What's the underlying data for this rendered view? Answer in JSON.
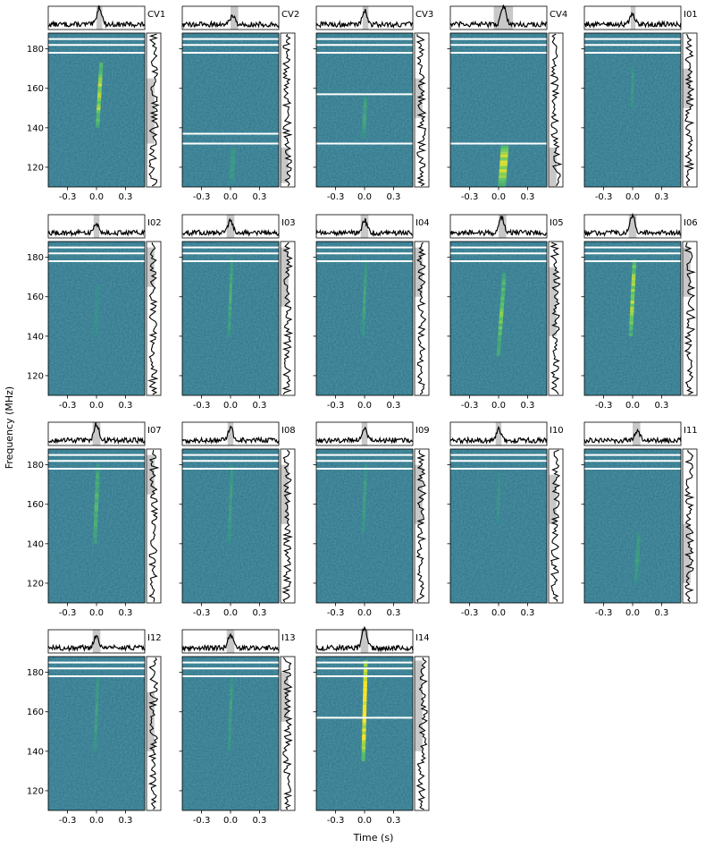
{
  "chart_data": {
    "type": "dynamic-spectrum-grid",
    "xlabel": "Time (s)",
    "ylabel": "Frequency (MHz)",
    "xlim": [
      -0.5,
      0.5
    ],
    "ylim": [
      110,
      188
    ],
    "x_ticks": [
      -0.3,
      0.0,
      0.3
    ],
    "x_tick_labels": [
      "-0.3",
      "0.0",
      "0.3"
    ],
    "y_ticks": [
      120,
      140,
      160,
      180
    ],
    "y_tick_labels": [
      "120",
      "140",
      "160",
      "180"
    ],
    "panels": [
      {
        "name": "CV1",
        "flag_lines": [
          178,
          182,
          185
        ],
        "emission": {
          "center_time": 0.03,
          "drift_s_per_MHz": 0.0012,
          "freq_min": 140,
          "freq_max": 172,
          "strength": 0.75,
          "width_s": 0.04
        },
        "shaded_time": [
          0.0,
          0.06
        ],
        "freq_shaded_band": [
          132,
          165
        ],
        "peak_height": 0.75
      },
      {
        "name": "CV2",
        "flag_lines": [
          132,
          137,
          178,
          182,
          185
        ],
        "emission": {
          "center_time": 0.02,
          "drift_s_per_MHz": 0.001,
          "freq_min": 112,
          "freq_max": 130,
          "strength": 0.25,
          "width_s": 0.05
        },
        "shaded_time": [
          0.0,
          0.08
        ],
        "freq_shaded_band": [
          112,
          130
        ],
        "peak_height": 0.4
      },
      {
        "name": "CV3",
        "flag_lines": [
          132,
          157,
          178,
          182,
          185
        ],
        "emission": {
          "center_time": 0.0,
          "drift_s_per_MHz": 0.0008,
          "freq_min": 135,
          "freq_max": 155,
          "strength": 0.35,
          "width_s": 0.04
        },
        "shaded_time": [
          -0.02,
          0.04
        ],
        "freq_shaded_band": [
          145,
          165
        ],
        "peak_height": 0.6
      },
      {
        "name": "CV4",
        "flag_lines": [
          132,
          178,
          182,
          185
        ],
        "emission": {
          "center_time": 0.05,
          "drift_s_per_MHz": 0.0015,
          "freq_min": 110,
          "freq_max": 130,
          "strength": 0.85,
          "width_s": 0.08
        },
        "shaded_time": [
          -0.05,
          0.15
        ],
        "freq_shaded_band": [
          110,
          130
        ],
        "peak_height": 0.8
      },
      {
        "name": "I01",
        "flag_lines": [
          178,
          182,
          185
        ],
        "emission": {
          "center_time": 0.0,
          "drift_s_per_MHz": 0.0005,
          "freq_min": 150,
          "freq_max": 170,
          "strength": 0.25,
          "width_s": 0.03
        },
        "shaded_time": [
          -0.02,
          0.03
        ],
        "freq_shaded_band": [
          150,
          170
        ],
        "peak_height": 0.45
      },
      {
        "name": "I02",
        "flag_lines": [
          178,
          182,
          185
        ],
        "emission": {
          "center_time": 0.0,
          "drift_s_per_MHz": 0.0005,
          "freq_min": 140,
          "freq_max": 165,
          "strength": 0.15,
          "width_s": 0.04
        },
        "shaded_time": [
          -0.03,
          0.03
        ],
        "freq_shaded_band": [
          165,
          185
        ],
        "peak_height": 0.4
      },
      {
        "name": "I03",
        "flag_lines": [
          178,
          182,
          185
        ],
        "emission": {
          "center_time": 0.0,
          "drift_s_per_MHz": 0.0008,
          "freq_min": 140,
          "freq_max": 180,
          "strength": 0.4,
          "width_s": 0.03
        },
        "shaded_time": [
          -0.04,
          0.04
        ],
        "freq_shaded_band": [
          155,
          185
        ],
        "peak_height": 0.55
      },
      {
        "name": "I04",
        "flag_lines": [
          178,
          182,
          185
        ],
        "emission": {
          "center_time": 0.0,
          "drift_s_per_MHz": 0.0008,
          "freq_min": 140,
          "freq_max": 178,
          "strength": 0.35,
          "width_s": 0.03
        },
        "shaded_time": [
          -0.04,
          0.04
        ],
        "freq_shaded_band": [
          160,
          185
        ],
        "peak_height": 0.55
      },
      {
        "name": "I05",
        "flag_lines": [
          178,
          182,
          185
        ],
        "emission": {
          "center_time": 0.03,
          "drift_s_per_MHz": 0.0015,
          "freq_min": 130,
          "freq_max": 172,
          "strength": 0.6,
          "width_s": 0.04
        },
        "shaded_time": [
          0.0,
          0.08
        ],
        "freq_shaded_band": [
          140,
          175
        ],
        "peak_height": 0.7
      },
      {
        "name": "I06",
        "flag_lines": [
          178,
          182,
          185
        ],
        "emission": {
          "center_time": 0.0,
          "drift_s_per_MHz": 0.001,
          "freq_min": 140,
          "freq_max": 178,
          "strength": 0.75,
          "width_s": 0.04
        },
        "shaded_time": [
          -0.04,
          0.04
        ],
        "freq_shaded_band": [
          160,
          185
        ],
        "peak_height": 0.75
      },
      {
        "name": "I07",
        "flag_lines": [
          178,
          182,
          185
        ],
        "emission": {
          "center_time": 0.0,
          "drift_s_per_MHz": 0.0008,
          "freq_min": 140,
          "freq_max": 180,
          "strength": 0.45,
          "width_s": 0.04
        },
        "shaded_time": [
          -0.04,
          0.04
        ],
        "freq_shaded_band": [
          165,
          185
        ],
        "peak_height": 0.7
      },
      {
        "name": "I08",
        "flag_lines": [
          178,
          182,
          185
        ],
        "emission": {
          "center_time": 0.0,
          "drift_s_per_MHz": 0.0008,
          "freq_min": 140,
          "freq_max": 180,
          "strength": 0.3,
          "width_s": 0.03
        },
        "shaded_time": [
          -0.03,
          0.03
        ],
        "freq_shaded_band": [
          150,
          180
        ],
        "peak_height": 0.55
      },
      {
        "name": "I09",
        "flag_lines": [
          178,
          182,
          185
        ],
        "emission": {
          "center_time": 0.0,
          "drift_s_per_MHz": 0.0008,
          "freq_min": 145,
          "freq_max": 180,
          "strength": 0.3,
          "width_s": 0.03
        },
        "shaded_time": [
          -0.03,
          0.03
        ],
        "freq_shaded_band": [
          150,
          180
        ],
        "peak_height": 0.55
      },
      {
        "name": "I10",
        "flag_lines": [
          178,
          182,
          185
        ],
        "emission": {
          "center_time": 0.0,
          "drift_s_per_MHz": 0.0006,
          "freq_min": 150,
          "freq_max": 175,
          "strength": 0.2,
          "width_s": 0.03
        },
        "shaded_time": [
          -0.03,
          0.03
        ],
        "freq_shaded_band": [
          150,
          175
        ],
        "peak_height": 0.5
      },
      {
        "name": "I11",
        "flag_lines": [
          178,
          182,
          185
        ],
        "emission": {
          "center_time": 0.05,
          "drift_s_per_MHz": 0.0012,
          "freq_min": 120,
          "freq_max": 145,
          "strength": 0.3,
          "width_s": 0.04
        },
        "shaded_time": [
          0.0,
          0.08
        ],
        "freq_shaded_band": [
          120,
          150
        ],
        "peak_height": 0.45
      },
      {
        "name": "I12",
        "flag_lines": [
          178,
          182,
          185
        ],
        "emission": {
          "center_time": 0.0,
          "drift_s_per_MHz": 0.0008,
          "freq_min": 140,
          "freq_max": 178,
          "strength": 0.3,
          "width_s": 0.03
        },
        "shaded_time": [
          -0.04,
          0.04
        ],
        "freq_shaded_band": [
          140,
          170
        ],
        "peak_height": 0.55
      },
      {
        "name": "I13",
        "flag_lines": [
          178,
          182,
          185
        ],
        "emission": {
          "center_time": 0.0,
          "drift_s_per_MHz": 0.0008,
          "freq_min": 140,
          "freq_max": 178,
          "strength": 0.3,
          "width_s": 0.03
        },
        "shaded_time": [
          -0.04,
          0.04
        ],
        "freq_shaded_band": [
          155,
          180
        ],
        "peak_height": 0.55
      },
      {
        "name": "I14",
        "flag_lines": [
          157,
          178,
          182,
          185
        ],
        "emission": {
          "center_time": 0.0,
          "drift_s_per_MHz": 0.0005,
          "freq_min": 135,
          "freq_max": 186,
          "strength": 1.0,
          "width_s": 0.04
        },
        "shaded_time": [
          -0.04,
          0.04
        ],
        "freq_shaded_band": [
          140,
          186
        ],
        "peak_height": 0.9
      }
    ]
  },
  "colors": {
    "bg_low": "#2c6f8e",
    "bg_mid": "#21908d",
    "signal_high": "#fde725",
    "signal_mid": "#5ec962",
    "line": "#000000",
    "shade": "#c8c8c8",
    "flag": "#ffffff"
  }
}
